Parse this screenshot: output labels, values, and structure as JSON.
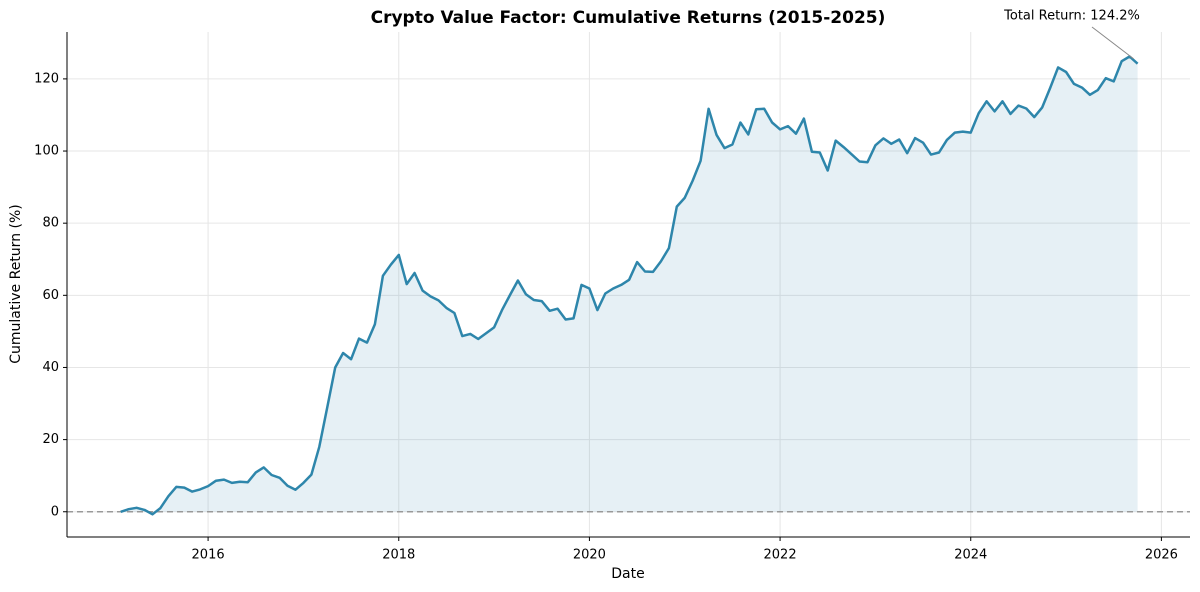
{
  "chart_data": {
    "type": "line",
    "title": "Crypto Value Factor: Cumulative Returns (2015-2025)",
    "xlabel": "Date",
    "ylabel": "Cumulative Return (%)",
    "annotation": "Total Return: 124.2%",
    "color": "#2e86ab",
    "hline": 0,
    "grid": true,
    "xlim": [
      2014.52,
      2026.3
    ],
    "xticks": [
      2016,
      2018,
      2020,
      2022,
      2024,
      2026
    ],
    "ylim": [
      -7,
      133
    ],
    "yticks": [
      0,
      20,
      40,
      60,
      80,
      100,
      120
    ],
    "x": [
      "2015-01",
      "2015-02",
      "2015-03",
      "2015-04",
      "2015-05",
      "2015-06",
      "2015-07",
      "2015-08",
      "2015-09",
      "2015-10",
      "2015-11",
      "2015-12",
      "2016-01",
      "2016-02",
      "2016-03",
      "2016-04",
      "2016-05",
      "2016-06",
      "2016-07",
      "2016-08",
      "2016-09",
      "2016-10",
      "2016-11",
      "2016-12",
      "2017-01",
      "2017-02",
      "2017-03",
      "2017-04",
      "2017-05",
      "2017-06",
      "2017-07",
      "2017-08",
      "2017-09",
      "2017-10",
      "2017-11",
      "2017-12",
      "2018-01",
      "2018-02",
      "2018-03",
      "2018-04",
      "2018-05",
      "2018-06",
      "2018-07",
      "2018-08",
      "2018-09",
      "2018-10",
      "2018-11",
      "2018-12",
      "2019-01",
      "2019-02",
      "2019-03",
      "2019-04",
      "2019-05",
      "2019-06",
      "2019-07",
      "2019-08",
      "2019-09",
      "2019-10",
      "2019-11",
      "2019-12",
      "2020-01",
      "2020-02",
      "2020-03",
      "2020-04",
      "2020-05",
      "2020-06",
      "2020-07",
      "2020-08",
      "2020-09",
      "2020-10",
      "2020-11",
      "2020-12",
      "2021-01",
      "2021-02",
      "2021-03",
      "2021-04",
      "2021-05",
      "2021-06",
      "2021-07",
      "2021-08",
      "2021-09",
      "2021-10",
      "2021-11",
      "2021-12",
      "2022-01",
      "2022-02",
      "2022-03",
      "2022-04",
      "2022-05",
      "2022-06",
      "2022-07",
      "2022-08",
      "2022-09",
      "2022-10",
      "2022-11",
      "2022-12",
      "2023-01",
      "2023-02",
      "2023-03",
      "2023-04",
      "2023-05",
      "2023-06",
      "2023-07",
      "2023-08",
      "2023-09",
      "2023-10",
      "2023-11",
      "2023-12",
      "2024-01",
      "2024-02",
      "2024-03",
      "2024-04",
      "2024-05",
      "2024-06",
      "2024-07",
      "2024-08",
      "2024-09",
      "2024-10",
      "2024-11",
      "2024-12",
      "2025-01",
      "2025-02",
      "2025-03",
      "2025-04",
      "2025-05",
      "2025-06",
      "2025-07",
      "2025-08",
      "2025-09"
    ],
    "values": [
      0,
      0.7,
      1.1,
      0.5,
      -0.7,
      1.0,
      4.3,
      6.9,
      6.7,
      5.6,
      6.2,
      7.1,
      8.6,
      8.9,
      8.0,
      8.3,
      8.2,
      10.9,
      12.3,
      10.2,
      9.4,
      7.2,
      6.1,
      8.0,
      10.3,
      18,
      29,
      40,
      44,
      42.3,
      48,
      46.9,
      52,
      65.4,
      68.5,
      71.2,
      63.1,
      66.2,
      61.3,
      59.7,
      58.6,
      56.5,
      55.1,
      48.7,
      49.3,
      47.9,
      49.5,
      51.1,
      55.9,
      60.1,
      64.1,
      60.3,
      58.7,
      58.4,
      55.7,
      56.3,
      53.3,
      53.6,
      62.9,
      61.9,
      55.9,
      60.5,
      61.9,
      62.9,
      64.3,
      69.2,
      66.6,
      66.5,
      69.4,
      73.1,
      84.6,
      87,
      91.8,
      97.3,
      111.7,
      104.5,
      100.8,
      101.8,
      107.9,
      104.6,
      111.6,
      111.7,
      107.9,
      106,
      106.9,
      104.8,
      109,
      99.8,
      99.6,
      94.6,
      102.9,
      101.1,
      99.1,
      97.1,
      96.9,
      101.6,
      103.5,
      102,
      103.2,
      99.4,
      103.6,
      102.3,
      99,
      99.6,
      103.1,
      105.1,
      105.4,
      105.1,
      110.5,
      113.8,
      111,
      113.8,
      110.3,
      112.6,
      111.8,
      109.4,
      112.1,
      117.5,
      123.2,
      121.9,
      118.6,
      117.6,
      115.6,
      116.9,
      120.2,
      119.3,
      124.9,
      126.2,
      124.2
    ]
  }
}
